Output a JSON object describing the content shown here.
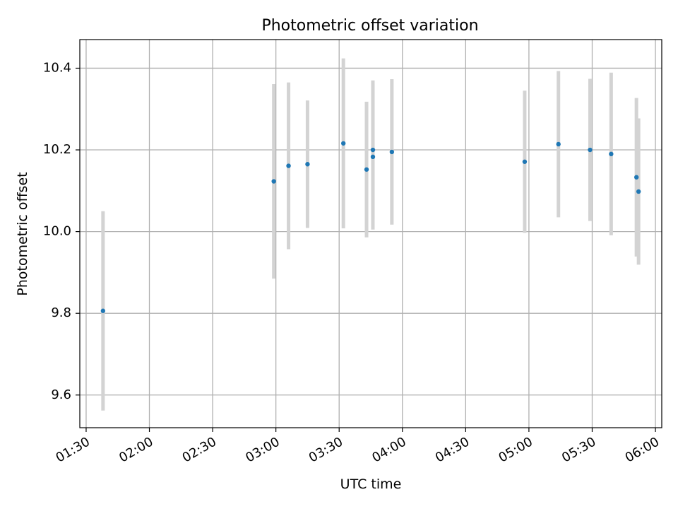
{
  "chart_data": {
    "type": "scatter",
    "title": "Photometric offset variation",
    "xlabel": "UTC time",
    "ylabel": "Photometric offset",
    "x_axis_kind": "time",
    "xlim": [
      "01:27",
      "06:03"
    ],
    "ylim": [
      9.52,
      10.47
    ],
    "grid": true,
    "x_ticks": [
      "01:30",
      "02:00",
      "02:30",
      "03:00",
      "03:30",
      "04:00",
      "04:30",
      "05:00",
      "05:30",
      "06:00"
    ],
    "y_ticks": [
      9.6,
      9.8,
      10.0,
      10.2,
      10.4
    ],
    "y_tick_labels": [
      "9.6",
      "9.8",
      "10.0",
      "10.2",
      "10.4"
    ],
    "marker_color": "#1f77b4",
    "errorbar_color": "#d3d3d3",
    "grid_color": "#b0b0b0",
    "points": [
      {
        "time": "01:38",
        "y": 9.806,
        "yerr": 0.244
      },
      {
        "time": "02:59",
        "y": 10.123,
        "yerr": 0.238
      },
      {
        "time": "03:06",
        "y": 10.161,
        "yerr": 0.204
      },
      {
        "time": "03:15",
        "y": 10.165,
        "yerr": 0.156
      },
      {
        "time": "03:32",
        "y": 10.216,
        "yerr": 0.208
      },
      {
        "time": "03:43",
        "y": 10.152,
        "yerr": 0.166
      },
      {
        "time": "03:46",
        "y": 10.183,
        "yerr": 0.178
      },
      {
        "time": "03:46",
        "y": 10.2,
        "yerr": 0.17
      },
      {
        "time": "03:55",
        "y": 10.195,
        "yerr": 0.178
      },
      {
        "time": "04:58",
        "y": 10.171,
        "yerr": 0.174
      },
      {
        "time": "05:14",
        "y": 10.214,
        "yerr": 0.179
      },
      {
        "time": "05:29",
        "y": 10.2,
        "yerr": 0.174
      },
      {
        "time": "05:39",
        "y": 10.19,
        "yerr": 0.199
      },
      {
        "time": "05:51",
        "y": 10.133,
        "yerr": 0.194
      },
      {
        "time": "05:52",
        "y": 10.098,
        "yerr": 0.179
      }
    ]
  }
}
